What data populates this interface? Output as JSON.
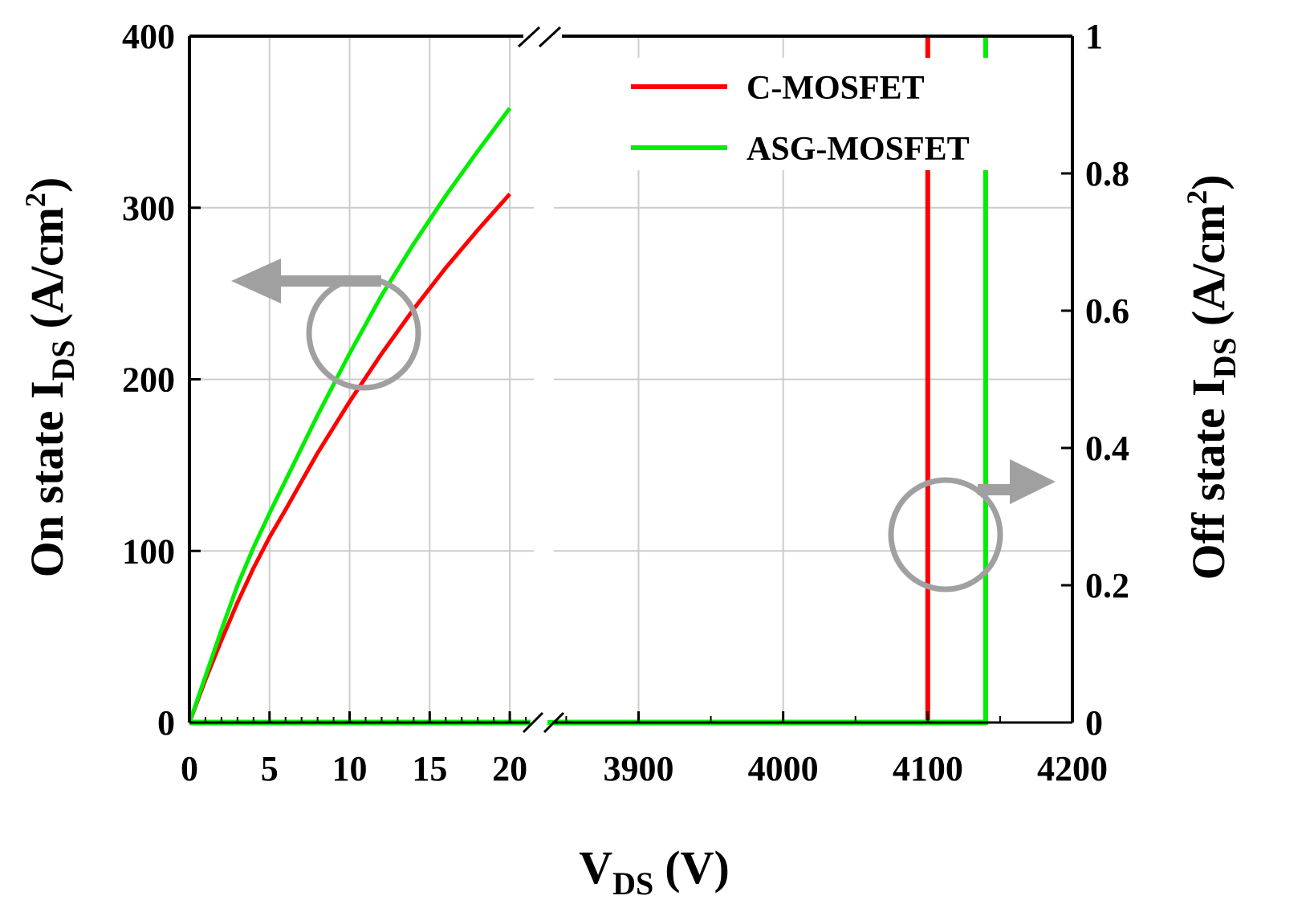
{
  "chart_data": {
    "type": "line",
    "x_axis": {
      "label_main": "V",
      "label_sub": "DS",
      "label_unit": "(V)",
      "break": true,
      "left_segment": {
        "range": [
          0,
          22
        ],
        "ticks": [
          0,
          5,
          10,
          15,
          20
        ],
        "tick_labels": [
          "0",
          "5",
          "10",
          "15",
          "20"
        ]
      },
      "right_segment": {
        "range": [
          3837,
          4200
        ],
        "ticks": [
          3900,
          4000,
          4100,
          4200
        ],
        "tick_labels": [
          "3900",
          "4000",
          "4100",
          "4200"
        ]
      }
    },
    "y_left": {
      "label_main": "On state I",
      "label_sub": "DS",
      "label_unit": "(A/cm",
      "label_sup": "2",
      "label_close": ")",
      "range": [
        0,
        400
      ],
      "ticks": [
        0,
        100,
        200,
        300,
        400
      ],
      "tick_labels": [
        "0",
        "100",
        "200",
        "300",
        "400"
      ]
    },
    "y_right": {
      "label_main": "Off state I",
      "label_sub": "DS",
      "label_unit": "(A/cm",
      "label_sup": "2",
      "label_close": ")",
      "range": [
        0,
        1
      ],
      "ticks": [
        0,
        0.2,
        0.4,
        0.6,
        0.8,
        1
      ],
      "tick_labels": [
        "0",
        "0.2",
        "0.4",
        "0.6",
        "0.8",
        "1"
      ]
    },
    "grid": true,
    "legend": {
      "position": "top-right"
    },
    "series": [
      {
        "name": "C-MOSFET",
        "color": "#ff0000",
        "on_state": {
          "x": [
            0,
            1,
            2,
            3,
            4,
            5,
            6,
            8,
            10,
            12,
            14,
            16,
            18,
            20
          ],
          "y": [
            0,
            25,
            48,
            70,
            90,
            108,
            124,
            157,
            187,
            215,
            241,
            265,
            287,
            308
          ]
        },
        "off_state": {
          "x": [
            3837,
            4100,
            4100
          ],
          "y": [
            0,
            0,
            1
          ]
        }
      },
      {
        "name": "ASG-MOSFET",
        "color": "#00ee00",
        "on_state": {
          "x": [
            0,
            1,
            2,
            3,
            4,
            5,
            6,
            8,
            10,
            12,
            14,
            16,
            18,
            20
          ],
          "y": [
            0,
            27,
            54,
            80,
            102,
            122,
            141,
            179,
            215,
            249,
            279,
            307,
            333,
            358
          ]
        },
        "off_state": {
          "x": [
            3837,
            4140,
            4140
          ],
          "y": [
            0,
            0,
            1
          ]
        }
      }
    ],
    "annotations": [
      {
        "type": "circle-arrow",
        "target_axis": "left",
        "direction": "left",
        "color": "#a0a0a0"
      },
      {
        "type": "circle-arrow",
        "target_axis": "right",
        "direction": "right",
        "color": "#a0a0a0"
      }
    ]
  }
}
